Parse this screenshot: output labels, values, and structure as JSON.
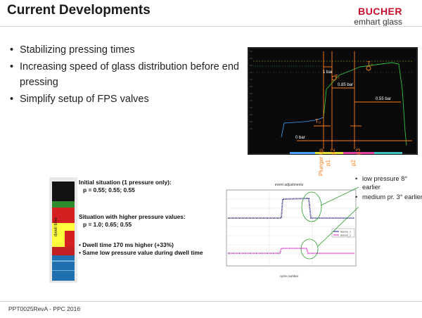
{
  "header": {
    "title": "Current Developments",
    "logo_line1": "BUCHER",
    "logo_line2": "emhart glass",
    "logo_color": "#c8102e"
  },
  "bullets": [
    "Stabilizing pressing times",
    "Increasing speed of glass distribution before end pressing",
    "Simplify setup of FPS valves"
  ],
  "scope": {
    "label_1bar": "1 bar",
    "label_t1": "T₁",
    "label_t2": "T₂",
    "label_t0": "T₀",
    "label_085": "0.85 bar",
    "label_055": "0.55 bar",
    "label_0bar": "0 bar",
    "axis_labels": [
      "Plunger up",
      "p1",
      "p2",
      "p2",
      "p3"
    ],
    "accent_color": "#ff7f1a"
  },
  "dwell": {
    "side_label": "dwell time",
    "colors": [
      "#111111",
      "#2e8b2e",
      "#d42020",
      "#ffff40",
      "#c02020",
      "#2070b0"
    ]
  },
  "annotations": {
    "initial_title": "Initial situation (1 pressure only):",
    "initial_values": "p = 0.55; 0.55; 0.55",
    "higher_title": "Situation with higher pressure values:",
    "higher_values": "p = 1.0; 0.65; 0.55",
    "dwell_bullet": "Dwell time 170 ms higher (+33%)",
    "same_bullet": "Same low pressure value during dwell time"
  },
  "trend": {
    "title": "event adjustments",
    "xlabel": "cycle number",
    "legend": [
      "Sensor_1",
      "Sensor_2"
    ],
    "series_colors": [
      "#1a1a8c",
      "#e020c8"
    ]
  },
  "callouts": [
    "low pressure 8° earlier",
    "medium pr. 3° earlier"
  ],
  "footer": "PPT0025RevA - PPC 2016"
}
